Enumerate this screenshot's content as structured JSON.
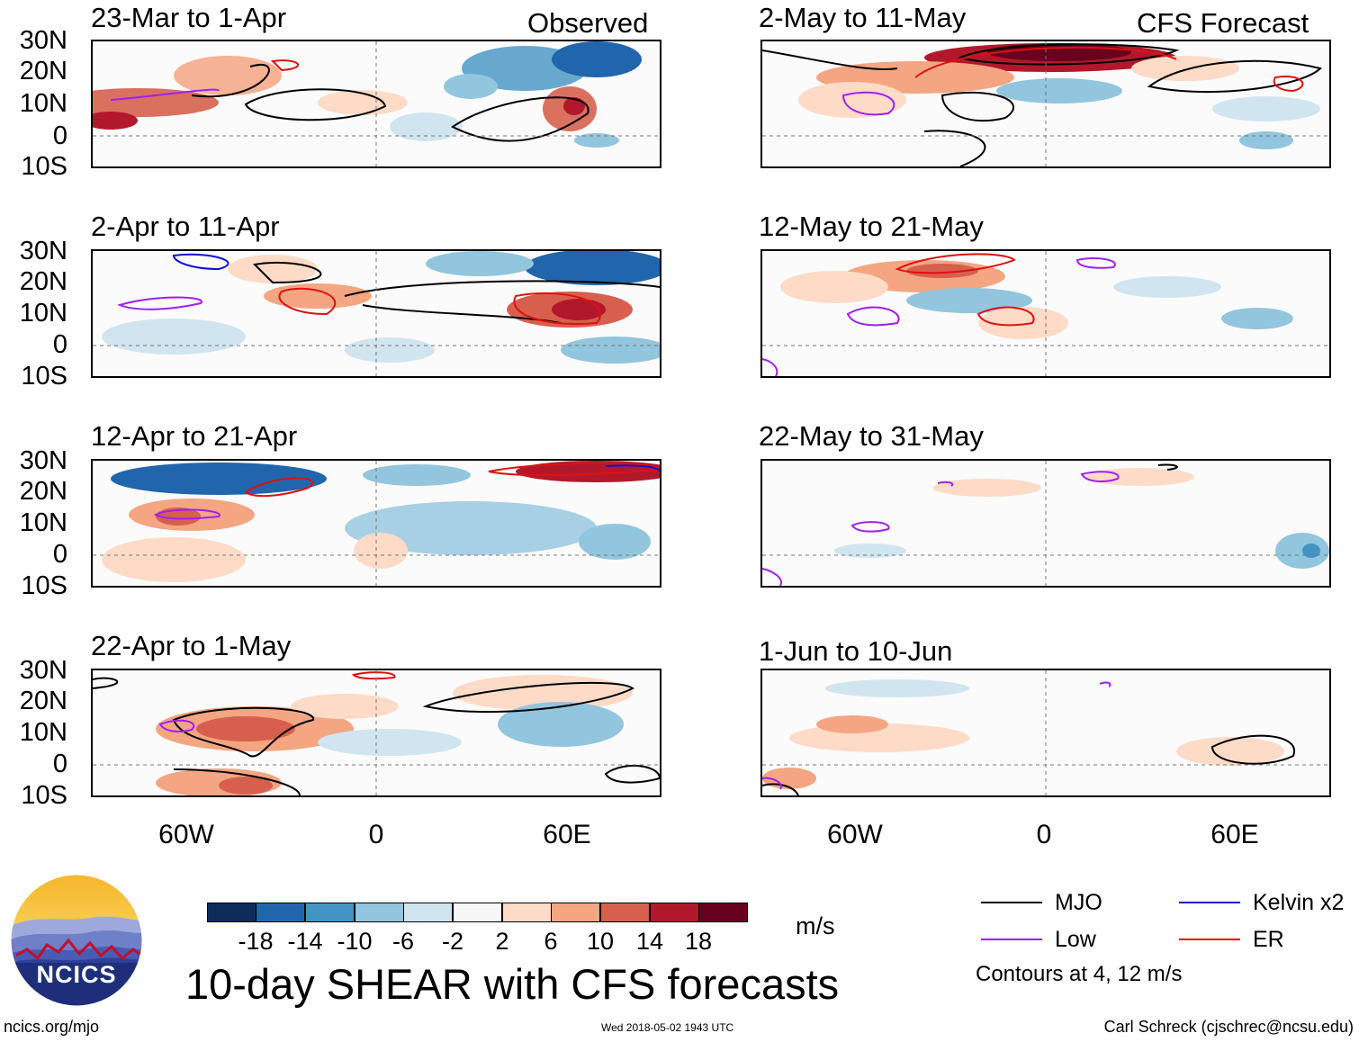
{
  "panels_left": [
    {
      "title": "23-Mar to 1-Apr",
      "corner": "Observed"
    },
    {
      "title": "2-Apr to 11-Apr"
    },
    {
      "title": "12-Apr to 21-Apr"
    },
    {
      "title": "22-Apr to 1-May"
    }
  ],
  "panels_right": [
    {
      "title": "2-May to 11-May",
      "corner": "CFS Forecast"
    },
    {
      "title": "12-May to 21-May"
    },
    {
      "title": "22-May to 31-May"
    },
    {
      "title": "1-Jun to 10-Jun"
    }
  ],
  "lat_labels": [
    "30N",
    "20N",
    "10N",
    "0",
    "10S"
  ],
  "lon_labels": [
    "60W",
    "0",
    "60E"
  ],
  "colorbar": {
    "unit": "m/s",
    "labels": [
      "-18",
      "-14",
      "-10",
      "-6",
      "-2",
      "2",
      "6",
      "10",
      "14",
      "18"
    ],
    "colors": [
      "#0d2c5c",
      "#2166ac",
      "#4393c3",
      "#92c5de",
      "#d1e5f0",
      "#f7f7f7",
      "#fddbc7",
      "#f4a582",
      "#d6604d",
      "#b2182b",
      "#67001f"
    ]
  },
  "legend": {
    "items": [
      {
        "label": "MJO",
        "color": "#000000"
      },
      {
        "label": "Kelvin x2",
        "color": "#1010dd"
      },
      {
        "label": "Low",
        "color": "#a020f0"
      },
      {
        "label": "ER",
        "color": "#e01010"
      }
    ],
    "note": "Contours at 4, 12 m/s"
  },
  "main_title": "10-day SHEAR with CFS forecasts",
  "logo_text": "NCICS",
  "footer": {
    "left": "ncics.org/mjo",
    "center": "Wed 2018-05-02 1943 UTC",
    "right": "Carl Schreck (cjschrec@ncsu.edu)"
  }
}
